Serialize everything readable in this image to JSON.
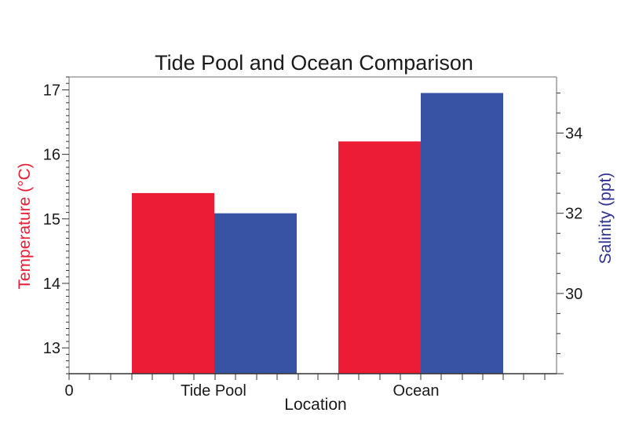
{
  "chart_data": {
    "type": "bar",
    "title": "Tide Pool and Ocean Comparison",
    "xlabel": "Location",
    "categories": [
      "Tide Pool",
      "Ocean"
    ],
    "x_origin_label": "0",
    "series": [
      {
        "name": "Temperature (°C)",
        "axis": "left",
        "color": "#ed1c35",
        "values": [
          15.4,
          16.2
        ]
      },
      {
        "name": "Salinity (ppt)",
        "axis": "right",
        "color": "#3853a4",
        "values": [
          32.0,
          35.0
        ]
      }
    ],
    "left_axis": {
      "label": "Temperature (°C)",
      "color": "#ed1c35",
      "range": [
        12.6,
        17.2
      ],
      "ticks": [
        13,
        14,
        15,
        16,
        17
      ]
    },
    "right_axis": {
      "label": "Salinity (ppt)",
      "color": "#2e3192",
      "range": [
        28.0,
        35.4
      ],
      "ticks": [
        30,
        32,
        34
      ]
    },
    "grid": false,
    "legend": "none"
  }
}
